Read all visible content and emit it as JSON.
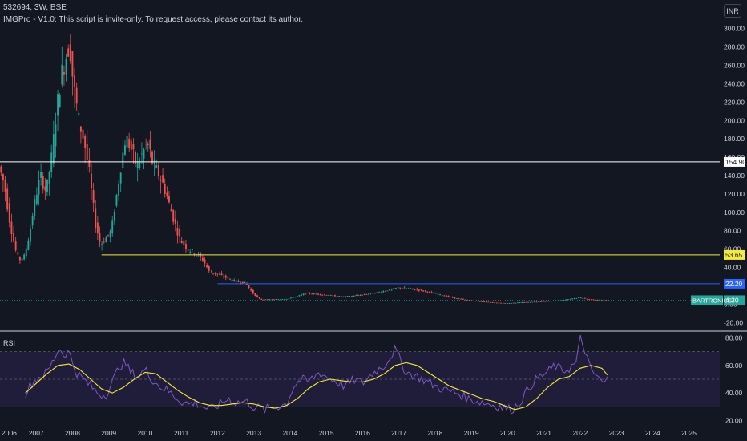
{
  "header": {
    "title": "532694, 3W, BSE",
    "indicator_text": "IMGPro - V1.0: This script is invite-only. To request access, please contact its author.",
    "currency_button": "INR"
  },
  "rsi_label": "RSI",
  "colors": {
    "background": "#131722",
    "bull": "#26a69a",
    "bear": "#ef5350",
    "line_white": "#ffffff",
    "line_yellow": "#f5eb3b",
    "line_blue": "#2962ff",
    "rsi_line": "#7e57c2",
    "rsi_ma": "#f5eb3b",
    "rsi_band": "#1f1d3a"
  },
  "chart_data": [
    {
      "type": "candlestick",
      "ylim": [
        -25,
        305
      ],
      "y_ticks": [
        "-20.00",
        "0.00",
        "20.00",
        "40.00",
        "60.00",
        "80.00",
        "100.00",
        "120.00",
        "140.00",
        "160.00",
        "180.00",
        "200.00",
        "220.00",
        "240.00",
        "260.00",
        "280.00",
        "300.00"
      ],
      "x_ticks": [
        "2006",
        "2007",
        "2008",
        "2009",
        "2010",
        "2011",
        "2012",
        "2013",
        "2014",
        "2015",
        "2016",
        "2017",
        "2018",
        "2019",
        "2020",
        "2021",
        "2022",
        "2023",
        "2024",
        "2025"
      ],
      "xlim": [
        2006.0,
        2025.85
      ],
      "horizontal_lines": [
        {
          "name": "line-154-90",
          "value": 154.9,
          "label": "154.90",
          "from_x": 2006.0,
          "color": "#ffffff"
        },
        {
          "name": "line-53-65",
          "value": 53.65,
          "label": "53.65",
          "from_x": 2008.8,
          "color": "#f5eb3b"
        },
        {
          "name": "line-22-20",
          "value": 22.2,
          "label": "22.20",
          "from_x": 2012.0,
          "color": "#2962ff"
        },
        {
          "name": "line-last-price",
          "value": 4.3,
          "label": "4.30",
          "from_x": 2006.0,
          "color": "#26a69a"
        }
      ],
      "price_tag": {
        "symbol": "BARTRONICS",
        "value": "4.30"
      },
      "price_path": [
        [
          2006.0,
          150
        ],
        [
          2006.15,
          130
        ],
        [
          2006.3,
          90
        ],
        [
          2006.45,
          60
        ],
        [
          2006.55,
          48
        ],
        [
          2006.7,
          52
        ],
        [
          2006.85,
          78
        ],
        [
          2007.0,
          115
        ],
        [
          2007.15,
          140
        ],
        [
          2007.3,
          122
        ],
        [
          2007.45,
          160
        ],
        [
          2007.6,
          215
        ],
        [
          2007.72,
          250
        ],
        [
          2007.85,
          270
        ],
        [
          2007.95,
          285
        ],
        [
          2008.05,
          240
        ],
        [
          2008.2,
          200
        ],
        [
          2008.35,
          178
        ],
        [
          2008.5,
          140
        ],
        [
          2008.65,
          90
        ],
        [
          2008.8,
          65
        ],
        [
          2008.95,
          72
        ],
        [
          2009.1,
          80
        ],
        [
          2009.25,
          120
        ],
        [
          2009.4,
          160
        ],
        [
          2009.5,
          183
        ],
        [
          2009.65,
          168
        ],
        [
          2009.8,
          150
        ],
        [
          2009.95,
          163
        ],
        [
          2010.1,
          176
        ],
        [
          2010.25,
          152
        ],
        [
          2010.4,
          142
        ],
        [
          2010.55,
          128
        ],
        [
          2010.7,
          108
        ],
        [
          2010.85,
          88
        ],
        [
          2011.0,
          70
        ],
        [
          2011.2,
          60
        ],
        [
          2011.45,
          55
        ],
        [
          2011.65,
          47
        ],
        [
          2011.8,
          35
        ],
        [
          2012.0,
          33
        ],
        [
          2012.2,
          30
        ],
        [
          2012.5,
          25
        ],
        [
          2012.8,
          23
        ],
        [
          2013.0,
          12
        ],
        [
          2013.2,
          5
        ],
        [
          2013.6,
          5
        ],
        [
          2014.0,
          6
        ],
        [
          2014.5,
          12
        ],
        [
          2015.0,
          10
        ],
        [
          2015.5,
          8
        ],
        [
          2016.0,
          10
        ],
        [
          2016.5,
          13
        ],
        [
          2017.0,
          18
        ],
        [
          2017.5,
          16
        ],
        [
          2018.0,
          12
        ],
        [
          2018.5,
          7
        ],
        [
          2019.0,
          4
        ],
        [
          2019.5,
          2
        ],
        [
          2020.0,
          1
        ],
        [
          2020.5,
          2
        ],
        [
          2021.0,
          3
        ],
        [
          2021.5,
          4
        ],
        [
          2022.0,
          7
        ],
        [
          2022.3,
          5
        ],
        [
          2022.8,
          4.3
        ]
      ],
      "candle_count": 290,
      "last_x": 2022.8
    },
    {
      "type": "line",
      "name": "RSI",
      "ylim": [
        18,
        82
      ],
      "y_ticks": [
        "20.00",
        "40.00",
        "60.00",
        "80.00"
      ],
      "bands": {
        "upper": 70,
        "middle": 50,
        "lower": 30
      },
      "series": [
        {
          "name": "RSI",
          "points": [
            [
              2006.7,
              40
            ],
            [
              2006.9,
              48
            ],
            [
              2007.1,
              52
            ],
            [
              2007.3,
              55
            ],
            [
              2007.5,
              65
            ],
            [
              2007.62,
              73
            ],
            [
              2007.75,
              68
            ],
            [
              2007.9,
              70
            ],
            [
              2008.1,
              55
            ],
            [
              2008.3,
              50
            ],
            [
              2008.5,
              45
            ],
            [
              2008.7,
              40
            ],
            [
              2008.9,
              38
            ],
            [
              2009.1,
              48
            ],
            [
              2009.3,
              60
            ],
            [
              2009.45,
              62
            ],
            [
              2009.6,
              55
            ],
            [
              2009.8,
              52
            ],
            [
              2010.0,
              57
            ],
            [
              2010.2,
              50
            ],
            [
              2010.4,
              45
            ],
            [
              2010.6,
              42
            ],
            [
              2010.8,
              38
            ],
            [
              2011.0,
              34
            ],
            [
              2011.2,
              32
            ],
            [
              2011.4,
              33
            ],
            [
              2011.6,
              30
            ],
            [
              2011.8,
              28
            ],
            [
              2012.0,
              31
            ],
            [
              2012.3,
              36
            ],
            [
              2012.5,
              33
            ],
            [
              2012.8,
              34
            ],
            [
              2013.0,
              30
            ],
            [
              2013.3,
              28
            ],
            [
              2013.6,
              30
            ],
            [
              2013.9,
              32
            ],
            [
              2014.1,
              45
            ],
            [
              2014.3,
              50
            ],
            [
              2014.5,
              48
            ],
            [
              2014.8,
              55
            ],
            [
              2015.0,
              52
            ],
            [
              2015.3,
              48
            ],
            [
              2015.5,
              45
            ],
            [
              2015.8,
              50
            ],
            [
              2016.0,
              47
            ],
            [
              2016.3,
              55
            ],
            [
              2016.6,
              60
            ],
            [
              2016.9,
              72
            ],
            [
              2017.0,
              66
            ],
            [
              2017.2,
              55
            ],
            [
              2017.5,
              52
            ],
            [
              2017.8,
              48
            ],
            [
              2018.0,
              45
            ],
            [
              2018.3,
              42
            ],
            [
              2018.6,
              40
            ],
            [
              2018.9,
              36
            ],
            [
              2019.2,
              34
            ],
            [
              2019.5,
              32
            ],
            [
              2019.8,
              30
            ],
            [
              2020.1,
              28
            ],
            [
              2020.3,
              32
            ],
            [
              2020.5,
              40
            ],
            [
              2020.7,
              48
            ],
            [
              2020.9,
              52
            ],
            [
              2021.1,
              55
            ],
            [
              2021.3,
              60
            ],
            [
              2021.5,
              56
            ],
            [
              2021.7,
              58
            ],
            [
              2021.9,
              62
            ],
            [
              2022.0,
              80
            ],
            [
              2022.15,
              70
            ],
            [
              2022.3,
              55
            ],
            [
              2022.5,
              52
            ],
            [
              2022.6,
              46
            ],
            [
              2022.75,
              50
            ]
          ]
        },
        {
          "name": "RSI MA",
          "points": [
            [
              2006.7,
              40
            ],
            [
              2007.0,
              47
            ],
            [
              2007.3,
              54
            ],
            [
              2007.6,
              60
            ],
            [
              2007.9,
              61
            ],
            [
              2008.2,
              57
            ],
            [
              2008.5,
              50
            ],
            [
              2008.8,
              43
            ],
            [
              2009.1,
              40
            ],
            [
              2009.4,
              44
            ],
            [
              2009.7,
              50
            ],
            [
              2010.0,
              55
            ],
            [
              2010.3,
              54
            ],
            [
              2010.6,
              48
            ],
            [
              2010.9,
              42
            ],
            [
              2011.2,
              37
            ],
            [
              2011.5,
              33
            ],
            [
              2011.8,
              31
            ],
            [
              2012.1,
              31
            ],
            [
              2012.4,
              32
            ],
            [
              2012.7,
              33
            ],
            [
              2013.0,
              32
            ],
            [
              2013.3,
              30
            ],
            [
              2013.6,
              29
            ],
            [
              2013.9,
              31
            ],
            [
              2014.2,
              36
            ],
            [
              2014.5,
              43
            ],
            [
              2014.8,
              48
            ],
            [
              2015.1,
              50
            ],
            [
              2015.4,
              49
            ],
            [
              2015.7,
              48
            ],
            [
              2016.0,
              48
            ],
            [
              2016.3,
              50
            ],
            [
              2016.6,
              54
            ],
            [
              2016.9,
              60
            ],
            [
              2017.2,
              62
            ],
            [
              2017.5,
              60
            ],
            [
              2017.8,
              55
            ],
            [
              2018.1,
              50
            ],
            [
              2018.4,
              45
            ],
            [
              2018.7,
              42
            ],
            [
              2019.0,
              39
            ],
            [
              2019.3,
              36
            ],
            [
              2019.6,
              34
            ],
            [
              2019.9,
              31
            ],
            [
              2020.2,
              28
            ],
            [
              2020.5,
              30
            ],
            [
              2020.8,
              36
            ],
            [
              2021.1,
              44
            ],
            [
              2021.4,
              50
            ],
            [
              2021.7,
              52
            ],
            [
              2022.0,
              58
            ],
            [
              2022.3,
              60
            ],
            [
              2022.6,
              58
            ],
            [
              2022.75,
              53
            ]
          ]
        }
      ]
    }
  ]
}
